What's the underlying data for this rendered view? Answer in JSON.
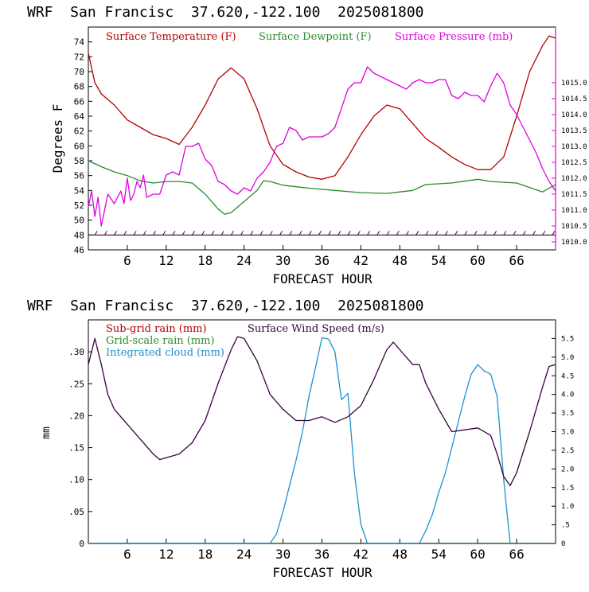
{
  "titles": {
    "top": "WRF  San Francisc  37.620,-122.100  2025081800",
    "bottom": "WRF  San Francisc  37.620,-122.100  2025081800"
  },
  "chart_data": [
    {
      "type": "line",
      "xlabel": "FORECAST HOUR",
      "ylabel": "Degrees F",
      "xlim": [
        0,
        72
      ],
      "ylim": [
        46,
        76
      ],
      "y2lim": [
        1009.75,
        1016.75
      ],
      "xticks": [
        6,
        12,
        18,
        24,
        30,
        36,
        42,
        48,
        54,
        60,
        66
      ],
      "yticks": [
        46,
        48,
        50,
        52,
        54,
        56,
        58,
        60,
        62,
        64,
        66,
        68,
        70,
        72,
        74
      ],
      "y2ticks": [
        "1010.0",
        "1010.5",
        "1011.0",
        "1011.5",
        "1012.0",
        "1012.5",
        "1013.0",
        "1013.5",
        "1014.0",
        "1014.5",
        "1015.0"
      ],
      "series": [
        {
          "name": "Surface Temperature (F)",
          "color": "#b30000",
          "axis": "left",
          "points": [
            [
              0,
              72.5
            ],
            [
              1,
              68.5
            ],
            [
              2,
              67
            ],
            [
              4,
              65.5
            ],
            [
              6,
              63.5
            ],
            [
              8,
              62.5
            ],
            [
              10,
              61.5
            ],
            [
              12,
              61
            ],
            [
              14,
              60.2
            ],
            [
              16,
              62.5
            ],
            [
              18,
              65.5
            ],
            [
              20,
              69
            ],
            [
              22,
              70.5
            ],
            [
              24,
              69
            ],
            [
              26,
              65
            ],
            [
              28,
              60
            ],
            [
              30,
              57.5
            ],
            [
              32,
              56.5
            ],
            [
              34,
              55.8
            ],
            [
              36,
              55.5
            ],
            [
              38,
              56
            ],
            [
              40,
              58.5
            ],
            [
              42,
              61.5
            ],
            [
              44,
              64
            ],
            [
              46,
              65.5
            ],
            [
              48,
              65
            ],
            [
              50,
              63
            ],
            [
              52,
              61
            ],
            [
              54,
              59.8
            ],
            [
              56,
              58.5
            ],
            [
              58,
              57.5
            ],
            [
              60,
              56.8
            ],
            [
              62,
              56.8
            ],
            [
              64,
              58.5
            ],
            [
              66,
              64
            ],
            [
              68,
              70
            ],
            [
              70,
              73.5
            ],
            [
              71,
              74.8
            ],
            [
              72,
              74.5
            ]
          ]
        },
        {
          "name": "Surface Dewpoint (F)",
          "color": "#2a8a2a",
          "axis": "left",
          "points": [
            [
              0,
              58
            ],
            [
              2,
              57.2
            ],
            [
              4,
              56.5
            ],
            [
              6,
              56
            ],
            [
              8,
              55.3
            ],
            [
              10,
              55
            ],
            [
              12,
              55.2
            ],
            [
              14,
              55.2
            ],
            [
              16,
              55
            ],
            [
              18,
              53.5
            ],
            [
              20,
              51.5
            ],
            [
              21,
              50.8
            ],
            [
              22,
              51
            ],
            [
              24,
              52.5
            ],
            [
              26,
              54
            ],
            [
              27,
              55.3
            ],
            [
              28,
              55.2
            ],
            [
              30,
              54.7
            ],
            [
              34,
              54.3
            ],
            [
              38,
              54
            ],
            [
              42,
              53.7
            ],
            [
              46,
              53.6
            ],
            [
              48,
              53.8
            ],
            [
              50,
              54
            ],
            [
              52,
              54.8
            ],
            [
              56,
              55
            ],
            [
              60,
              55.5
            ],
            [
              62,
              55.2
            ],
            [
              66,
              55
            ],
            [
              70,
              53.8
            ],
            [
              72,
              54.8
            ]
          ]
        },
        {
          "name": "Surface Pressure (mb)",
          "color": "#e000e0",
          "axis": "right",
          "points": [
            [
              0,
              1011.1
            ],
            [
              0.5,
              1011.6
            ],
            [
              1,
              1010.8
            ],
            [
              1.5,
              1011.4
            ],
            [
              2,
              1010.5
            ],
            [
              3,
              1011.5
            ],
            [
              4,
              1011.2
            ],
            [
              5,
              1011.6
            ],
            [
              5.5,
              1011.2
            ],
            [
              6,
              1012
            ],
            [
              6.5,
              1011.3
            ],
            [
              7,
              1011.5
            ],
            [
              7.5,
              1011.9
            ],
            [
              8,
              1011.7
            ],
            [
              8.5,
              1012.1
            ],
            [
              9,
              1011.4
            ],
            [
              10,
              1011.5
            ],
            [
              11,
              1011.5
            ],
            [
              12,
              1012.1
            ],
            [
              13,
              1012.2
            ],
            [
              14,
              1012.1
            ],
            [
              15,
              1013
            ],
            [
              16,
              1013
            ],
            [
              17,
              1013.1
            ],
            [
              18,
              1012.6
            ],
            [
              19,
              1012.4
            ],
            [
              20,
              1011.9
            ],
            [
              21,
              1011.8
            ],
            [
              22,
              1011.6
            ],
            [
              23,
              1011.5
            ],
            [
              24,
              1011.7
            ],
            [
              25,
              1011.6
            ],
            [
              26,
              1012
            ],
            [
              27,
              1012.2
            ],
            [
              28,
              1012.5
            ],
            [
              29,
              1013
            ],
            [
              30,
              1013.1
            ],
            [
              31,
              1013.6
            ],
            [
              32,
              1013.5
            ],
            [
              33,
              1013.2
            ],
            [
              34,
              1013.3
            ],
            [
              35,
              1013.3
            ],
            [
              36,
              1013.3
            ],
            [
              37,
              1013.4
            ],
            [
              38,
              1013.6
            ],
            [
              39,
              1014.2
            ],
            [
              40,
              1014.8
            ],
            [
              41,
              1015
            ],
            [
              42,
              1015
            ],
            [
              43,
              1015.5
            ],
            [
              44,
              1015.3
            ],
            [
              45,
              1015.2
            ],
            [
              46,
              1015.1
            ],
            [
              47,
              1015.0
            ],
            [
              48,
              1014.9
            ],
            [
              49,
              1014.8
            ],
            [
              50,
              1015
            ],
            [
              51,
              1015.1
            ],
            [
              52,
              1015
            ],
            [
              53,
              1015
            ],
            [
              54,
              1015.1
            ],
            [
              55,
              1015.1
            ],
            [
              56,
              1014.6
            ],
            [
              57,
              1014.5
            ],
            [
              58,
              1014.7
            ],
            [
              59,
              1014.6
            ],
            [
              60,
              1014.6
            ],
            [
              61,
              1014.4
            ],
            [
              62,
              1014.9
            ],
            [
              63,
              1015.3
            ],
            [
              64,
              1015.0
            ],
            [
              65,
              1014.3
            ],
            [
              66,
              1014.0
            ],
            [
              67,
              1013.6
            ],
            [
              68,
              1013.2
            ],
            [
              69,
              1012.8
            ],
            [
              70,
              1012.3
            ],
            [
              71,
              1011.9
            ],
            [
              72,
              1011.6
            ]
          ]
        }
      ],
      "wind_barbs": "row of wind barbs along the bottom at about 48 F"
    },
    {
      "type": "line",
      "xlabel": "FORECAST HOUR",
      "ylabel": "mm",
      "xlim": [
        0,
        72
      ],
      "ylim": [
        0,
        0.35
      ],
      "y2lim": [
        0,
        6
      ],
      "xticks": [
        6,
        12,
        18,
        24,
        30,
        36,
        42,
        48,
        54,
        60,
        66
      ],
      "yticks": [
        "0",
        ".05",
        ".10",
        ".15",
        ".20",
        ".25",
        ".30"
      ],
      "y2ticks": [
        "0",
        ".5",
        "1.0",
        "1.5",
        "2.0",
        "2.5",
        "3.0",
        "3.5",
        "4.0",
        "4.5",
        "5.0",
        "5.5"
      ],
      "series": [
        {
          "name": "Sub-grid rain (mm)",
          "color": "#b30000",
          "axis": "left",
          "points": [
            [
              0,
              0
            ],
            [
              72,
              0
            ]
          ]
        },
        {
          "name": "Grid-scale rain (mm)",
          "color": "#2a8a2a",
          "axis": "left",
          "points": [
            [
              0,
              0
            ],
            [
              72,
              0
            ]
          ]
        },
        {
          "name": "Integrated cloud (mm)",
          "color": "#1e90d0",
          "axis": "left",
          "points": [
            [
              0,
              0
            ],
            [
              28,
              0
            ],
            [
              29,
              0.015
            ],
            [
              30,
              0.05
            ],
            [
              31,
              0.09
            ],
            [
              32,
              0.13
            ],
            [
              33,
              0.175
            ],
            [
              34,
              0.23
            ],
            [
              35,
              0.275
            ],
            [
              36,
              0.322
            ],
            [
              37,
              0.32
            ],
            [
              38,
              0.3
            ],
            [
              39,
              0.225
            ],
            [
              40,
              0.235
            ],
            [
              41,
              0.11
            ],
            [
              42,
              0.03
            ],
            [
              43,
              0
            ],
            [
              51,
              0
            ],
            [
              52,
              0.02
            ],
            [
              53,
              0.045
            ],
            [
              54,
              0.08
            ],
            [
              55,
              0.11
            ],
            [
              56,
              0.15
            ],
            [
              57,
              0.19
            ],
            [
              58,
              0.23
            ],
            [
              59,
              0.265
            ],
            [
              60,
              0.28
            ],
            [
              61,
              0.27
            ],
            [
              62,
              0.265
            ],
            [
              63,
              0.23
            ],
            [
              64,
              0.1
            ],
            [
              65,
              0
            ]
          ]
        },
        {
          "name": "Surface Wind Speed (m/s)",
          "color": "#3a0040",
          "axis": "right",
          "points": [
            [
              0,
              4.8
            ],
            [
              1,
              5.5
            ],
            [
              2,
              4.8
            ],
            [
              3,
              4
            ],
            [
              4,
              3.6
            ],
            [
              6,
              3.2
            ],
            [
              8,
              2.8
            ],
            [
              10,
              2.4
            ],
            [
              11,
              2.25
            ],
            [
              12,
              2.3
            ],
            [
              14,
              2.4
            ],
            [
              16,
              2.7
            ],
            [
              18,
              3.3
            ],
            [
              20,
              4.3
            ],
            [
              22,
              5.2
            ],
            [
              23,
              5.55
            ],
            [
              24,
              5.5
            ],
            [
              26,
              4.9
            ],
            [
              28,
              4
            ],
            [
              30,
              3.6
            ],
            [
              32,
              3.3
            ],
            [
              34,
              3.3
            ],
            [
              36,
              3.4
            ],
            [
              38,
              3.25
            ],
            [
              40,
              3.4
            ],
            [
              42,
              3.7
            ],
            [
              44,
              4.4
            ],
            [
              46,
              5.2
            ],
            [
              47,
              5.4
            ],
            [
              48,
              5.2
            ],
            [
              50,
              4.8
            ],
            [
              51,
              4.8
            ],
            [
              52,
              4.3
            ],
            [
              54,
              3.6
            ],
            [
              56,
              3
            ],
            [
              58,
              3.05
            ],
            [
              60,
              3.1
            ],
            [
              62,
              2.9
            ],
            [
              63,
              2.4
            ],
            [
              64,
              1.8
            ],
            [
              65,
              1.55
            ],
            [
              66,
              1.9
            ],
            [
              68,
              3
            ],
            [
              70,
              4.2
            ],
            [
              71,
              4.75
            ],
            [
              72,
              4.8
            ]
          ]
        }
      ]
    }
  ]
}
